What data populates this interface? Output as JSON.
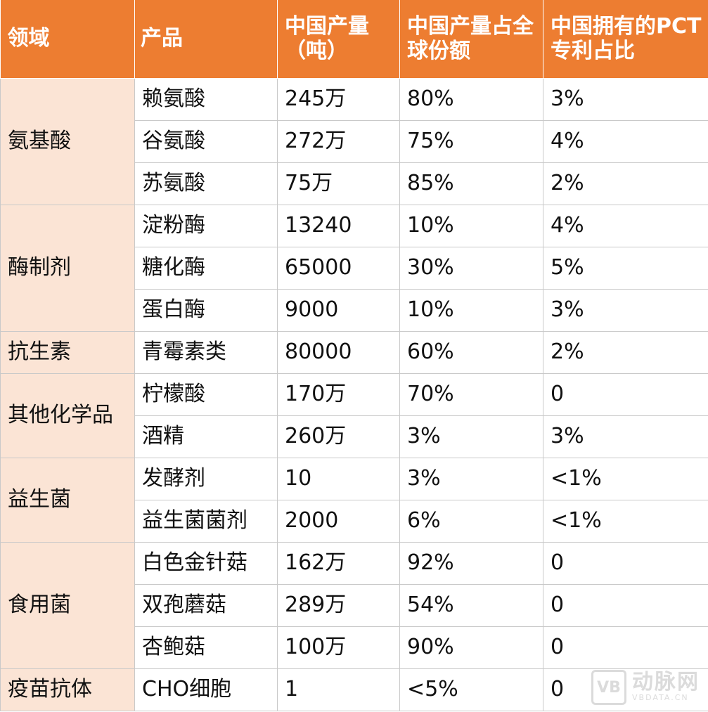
{
  "headers": {
    "domain": "领域",
    "product": "产品",
    "production": "中国产量（吨）",
    "share": "中国产量占全球份额",
    "pct": "中国拥有的PCT专利占比"
  },
  "groups": [
    {
      "domain": "氨基酸",
      "rows": [
        {
          "product": "赖氨酸",
          "production": "245万",
          "share": "80%",
          "pct": "3%"
        },
        {
          "product": "谷氨酸",
          "production": "272万",
          "share": "75%",
          "pct": "4%"
        },
        {
          "product": "苏氨酸",
          "production": "75万",
          "share": "85%",
          "pct": "2%"
        }
      ]
    },
    {
      "domain": "酶制剂",
      "rows": [
        {
          "product": "淀粉酶",
          "production": "13240",
          "share": "10%",
          "pct": "4%"
        },
        {
          "product": "糖化酶",
          "production": "65000",
          "share": "30%",
          "pct": "5%"
        },
        {
          "product": "蛋白酶",
          "production": "9000",
          "share": "10%",
          "pct": "3%"
        }
      ]
    },
    {
      "domain": "抗生素",
      "rows": [
        {
          "product": "青霉素类",
          "production": "80000",
          "share": "60%",
          "pct": "2%"
        }
      ]
    },
    {
      "domain": "其他化学品",
      "rows": [
        {
          "product": "柠檬酸",
          "production": "170万",
          "share": "70%",
          "pct": "0"
        },
        {
          "product": "酒精",
          "production": "260万",
          "share": "3%",
          "pct": "3%"
        }
      ]
    },
    {
      "domain": "益生菌",
      "rows": [
        {
          "product": "发酵剂",
          "production": "10",
          "share": "3%",
          "pct": "<1%"
        },
        {
          "product": "益生菌菌剂",
          "production": "2000",
          "share": "6%",
          "pct": "<1%"
        }
      ]
    },
    {
      "domain": "食用菌",
      "rows": [
        {
          "product": "白色金针菇",
          "production": "162万",
          "share": "92%",
          "pct": "0"
        },
        {
          "product": "双孢蘑菇",
          "production": "289万",
          "share": "54%",
          "pct": "0"
        },
        {
          "product": "杏鲍菇",
          "production": "100万",
          "share": "90%",
          "pct": "0"
        }
      ]
    },
    {
      "domain": "疫苗抗体",
      "rows": [
        {
          "product": "CHO细胞",
          "production": "1",
          "share": "<5%",
          "pct": "0"
        }
      ]
    }
  ],
  "watermark": {
    "cn": "动脉网",
    "en": "VBDATA.CN",
    "logo": "VB"
  },
  "colors": {
    "header": "#ED7D31",
    "domain_cell": "#FBE4D5",
    "header_text": "#FFFFFF"
  }
}
